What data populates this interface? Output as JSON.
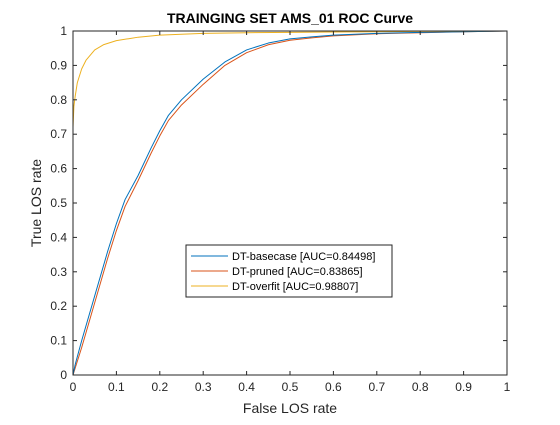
{
  "chart_data": {
    "type": "line",
    "title": "TRAINGING SET AMS_01 ROC Curve",
    "xlabel": "False LOS rate",
    "ylabel": "True LOS rate",
    "xlim": [
      0,
      1
    ],
    "ylim": [
      0,
      1
    ],
    "xticks": [
      "0",
      "0.1",
      "0.2",
      "0.3",
      "0.4",
      "0.5",
      "0.6",
      "0.7",
      "0.8",
      "0.9",
      "1"
    ],
    "yticks": [
      "0",
      "0.1",
      "0.2",
      "0.3",
      "0.4",
      "0.5",
      "0.6",
      "0.7",
      "0.8",
      "0.9",
      "1"
    ],
    "grid": false,
    "legend_position": "center",
    "series": [
      {
        "name": "DT-basecase [AUC=0.84498]",
        "color": "#0072BD",
        "x": [
          0,
          0.005,
          0.02,
          0.05,
          0.08,
          0.1,
          0.12,
          0.15,
          0.18,
          0.2,
          0.22,
          0.25,
          0.3,
          0.35,
          0.4,
          0.45,
          0.5,
          0.55,
          0.6,
          0.7,
          0.8,
          0.9,
          1.0
        ],
        "y": [
          0,
          0.03,
          0.1,
          0.23,
          0.36,
          0.44,
          0.51,
          0.58,
          0.66,
          0.71,
          0.755,
          0.8,
          0.86,
          0.91,
          0.945,
          0.965,
          0.977,
          0.983,
          0.988,
          0.993,
          0.996,
          0.998,
          1.0
        ]
      },
      {
        "name": "DT-pruned [AUC=0.83865]",
        "color": "#D95319",
        "x": [
          0,
          0.005,
          0.02,
          0.05,
          0.08,
          0.1,
          0.12,
          0.15,
          0.18,
          0.2,
          0.22,
          0.25,
          0.3,
          0.35,
          0.4,
          0.45,
          0.5,
          0.55,
          0.6,
          0.7,
          0.8,
          0.9,
          1.0
        ],
        "y": [
          0,
          0.02,
          0.08,
          0.21,
          0.34,
          0.42,
          0.49,
          0.565,
          0.645,
          0.695,
          0.74,
          0.785,
          0.845,
          0.9,
          0.937,
          0.96,
          0.973,
          0.98,
          0.986,
          0.992,
          0.995,
          0.998,
          1.0
        ]
      },
      {
        "name": "DT-overfit [AUC=0.98807]",
        "color": "#EDB120",
        "x": [
          0,
          0.0,
          0.002,
          0.005,
          0.01,
          0.02,
          0.03,
          0.05,
          0.07,
          0.1,
          0.13,
          0.15,
          0.2,
          0.3,
          0.4,
          0.5,
          0.6,
          0.7,
          0.8,
          0.9,
          1.0
        ],
        "y": [
          0,
          0.72,
          0.78,
          0.81,
          0.85,
          0.89,
          0.915,
          0.945,
          0.96,
          0.972,
          0.978,
          0.982,
          0.988,
          0.993,
          0.995,
          0.996,
          0.997,
          0.998,
          0.999,
          0.9995,
          1.0
        ]
      }
    ]
  }
}
